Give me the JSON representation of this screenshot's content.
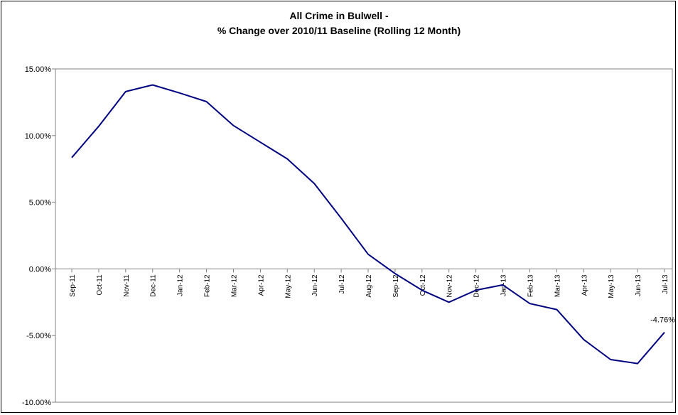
{
  "chart_data": {
    "type": "line",
    "title": "All Crime in Bulwell -",
    "subtitle": "% Change over 2010/11 Baseline (Rolling 12 Month)",
    "xlabel": "",
    "ylabel": "",
    "ylim": [
      -10,
      15
    ],
    "yticks": [
      15,
      10,
      5,
      0,
      -5,
      -10
    ],
    "ytick_labels": [
      "15.00%",
      "10.00%",
      "5.00%",
      "0.00%",
      "-5.00%",
      "-10.00%"
    ],
    "categories": [
      "Sep-11",
      "Oct-11",
      "Nov-11",
      "Dec-11",
      "Jan-12",
      "Feb-12",
      "Mar-12",
      "Apr-12",
      "May-12",
      "Jun-12",
      "Jul-12",
      "Aug-12",
      "Sep-12",
      "Oct-12",
      "Nov-12",
      "Dec-12",
      "Jan-13",
      "Feb-13",
      "Mar-13",
      "Apr-13",
      "May-13",
      "Jun-13",
      "Jul-13"
    ],
    "series": [
      {
        "color": "#000080",
        "values": [
          8.35,
          10.7,
          13.3,
          13.8,
          13.2,
          12.55,
          10.75,
          9.5,
          8.25,
          6.4,
          3.8,
          1.1,
          -0.35,
          -1.6,
          -2.5,
          -1.6,
          -1.2,
          -2.6,
          -3.05,
          -5.3,
          -6.8,
          -7.1,
          -4.76
        ]
      }
    ],
    "annotations": [
      {
        "category": "Jul-13",
        "text": "-4.76%"
      }
    ],
    "grid": false,
    "legend": "none"
  }
}
